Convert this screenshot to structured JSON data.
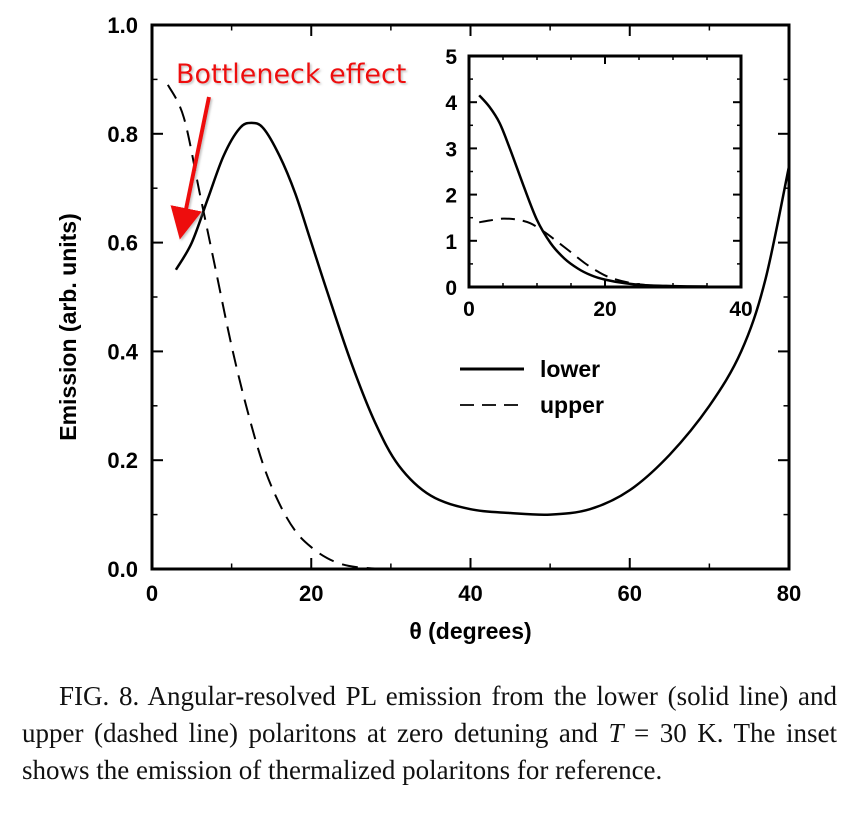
{
  "chart_data": [
    {
      "id": "main",
      "type": "line",
      "title": "",
      "xlabel": "θ (degrees)",
      "ylabel": "Emission (arb. units)",
      "xlim": [
        0,
        80
      ],
      "ylim": [
        0,
        1.0
      ],
      "xticks": [
        0,
        20,
        40,
        60,
        80
      ],
      "xtick_labels": [
        "0",
        "20",
        "40",
        "60",
        "80"
      ],
      "yticks": [
        0.0,
        0.2,
        0.4,
        0.6,
        0.8,
        1.0
      ],
      "ytick_labels": [
        "0.0",
        "0.2",
        "0.4",
        "0.6",
        "0.8",
        "1.0"
      ],
      "grid": false,
      "legend": {
        "placement": "center-right",
        "entries": [
          {
            "label": "lower",
            "style": "solid"
          },
          {
            "label": "upper",
            "style": "dashed"
          }
        ]
      },
      "series": [
        {
          "name": "lower",
          "style": "solid",
          "x": [
            3,
            5,
            7,
            9,
            11,
            12.5,
            14,
            16,
            18,
            20,
            22,
            25,
            28,
            31,
            35,
            40,
            45,
            50,
            55,
            60,
            65,
            70,
            74,
            77,
            80
          ],
          "y": [
            0.55,
            0.6,
            0.68,
            0.76,
            0.81,
            0.82,
            0.81,
            0.76,
            0.69,
            0.6,
            0.51,
            0.38,
            0.27,
            0.19,
            0.135,
            0.11,
            0.103,
            0.1,
            0.11,
            0.145,
            0.21,
            0.3,
            0.4,
            0.53,
            0.74
          ]
        },
        {
          "name": "upper",
          "style": "dashed",
          "x": [
            2,
            4,
            6,
            8,
            10,
            12,
            14,
            16,
            18,
            20,
            22,
            24,
            26,
            28,
            30
          ],
          "y": [
            0.89,
            0.83,
            0.69,
            0.55,
            0.41,
            0.29,
            0.19,
            0.12,
            0.07,
            0.04,
            0.02,
            0.008,
            0.003,
            0.001,
            0.0
          ]
        }
      ],
      "annotations": [
        {
          "text": "Bottleneck effect",
          "color": "#ee1111",
          "arrow_to": [
            3.5,
            0.61
          ]
        }
      ]
    },
    {
      "id": "inset",
      "type": "line",
      "title": "",
      "xlabel": "",
      "ylabel": "",
      "xlim": [
        0,
        40
      ],
      "ylim": [
        0,
        5
      ],
      "xticks": [
        0,
        20,
        40
      ],
      "xtick_labels": [
        "0",
        "20",
        "40"
      ],
      "yticks": [
        0,
        1,
        2,
        3,
        4,
        5
      ],
      "ytick_labels": [
        "0",
        "1",
        "2",
        "3",
        "4",
        "5"
      ],
      "grid": false,
      "series": [
        {
          "name": "lower",
          "style": "solid",
          "x": [
            1.5,
            3,
            4.5,
            6,
            8,
            10,
            12,
            14,
            16,
            18,
            20,
            23,
            26,
            30,
            35
          ],
          "y": [
            4.15,
            3.9,
            3.55,
            3.0,
            2.2,
            1.45,
            0.95,
            0.62,
            0.4,
            0.25,
            0.16,
            0.08,
            0.04,
            0.02,
            0.01
          ]
        },
        {
          "name": "upper",
          "style": "dashed",
          "x": [
            1.5,
            3,
            5,
            7,
            9,
            11,
            13,
            15,
            17,
            19,
            21,
            24,
            27,
            30
          ],
          "y": [
            1.4,
            1.44,
            1.48,
            1.46,
            1.38,
            1.2,
            0.98,
            0.75,
            0.52,
            0.33,
            0.19,
            0.08,
            0.03,
            0.01
          ]
        }
      ]
    }
  ],
  "caption": {
    "fig_label": "FIG. 8.",
    "text_part1": " Angular-resolved PL emission from the lower (solid line) and upper (dashed line) polaritons at zero detuning and ",
    "italic_T": "T",
    "text_part2": " = 30 K. The inset shows the emission of thermalized polaritons for reference."
  }
}
